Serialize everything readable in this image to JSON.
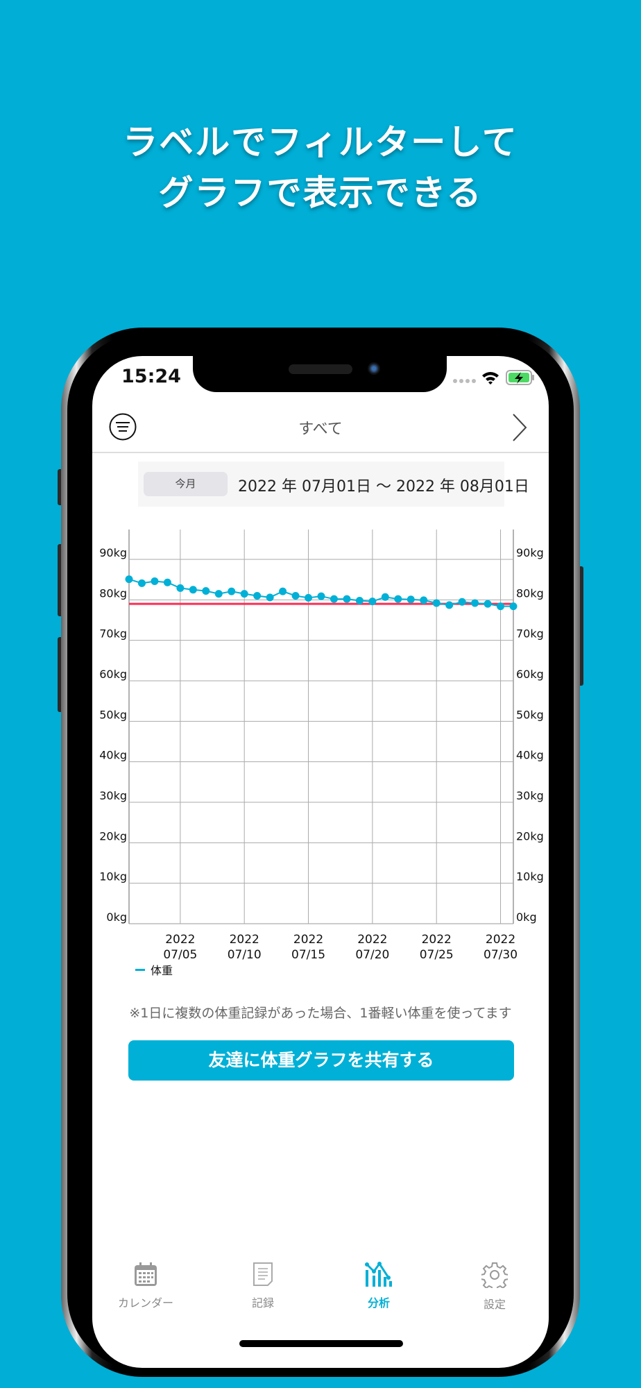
{
  "promo": {
    "line1": "ラベルでフィルターして",
    "line2": "グラフで表示できる"
  },
  "status": {
    "time": "15:24"
  },
  "header": {
    "title": "すべて",
    "menu_icon": "menu-circle-icon",
    "next_icon": "chevron-right-icon"
  },
  "period": {
    "preset": "今月",
    "range": "2022 年 07月01日 〜 2022 年 08月01日"
  },
  "chart_data": {
    "type": "line",
    "x": [
      "07/01",
      "07/02",
      "07/03",
      "07/04",
      "07/05",
      "07/06",
      "07/07",
      "07/08",
      "07/09",
      "07/10",
      "07/11",
      "07/12",
      "07/13",
      "07/14",
      "07/15",
      "07/16",
      "07/17",
      "07/18",
      "07/19",
      "07/20",
      "07/21",
      "07/22",
      "07/23",
      "07/24",
      "07/25",
      "07/26",
      "07/27",
      "07/28",
      "07/29",
      "07/30",
      "07/31"
    ],
    "series": [
      {
        "name": "体重",
        "color": "#00b0d6",
        "values": [
          85.1,
          84.1,
          84.6,
          84.3,
          82.9,
          82.5,
          82.2,
          81.5,
          82.1,
          81.5,
          81.0,
          80.6,
          82.1,
          81.0,
          80.5,
          80.9,
          80.2,
          80.2,
          79.8,
          79.6,
          80.7,
          80.2,
          80.1,
          79.9,
          79.2,
          78.7,
          79.5,
          79.2,
          79.0,
          78.4,
          78.4
        ]
      }
    ],
    "target_line": {
      "value": 79,
      "color": "#ff2d55"
    },
    "ylim": [
      0,
      90
    ],
    "yticks": [
      "0kg",
      "10kg",
      "20kg",
      "30kg",
      "40kg",
      "50kg",
      "60kg",
      "70kg",
      "80kg",
      "90kg"
    ],
    "xticks": [
      {
        "year": "2022",
        "date": "07/05"
      },
      {
        "year": "2022",
        "date": "07/10"
      },
      {
        "year": "2022",
        "date": "07/15"
      },
      {
        "year": "2022",
        "date": "07/20"
      },
      {
        "year": "2022",
        "date": "07/25"
      },
      {
        "year": "2022",
        "date": "07/30"
      }
    ],
    "grid": true,
    "legend": "bottom-left"
  },
  "note": "※1日に複数の体重記録があった場合、1番軽い体重を使ってます",
  "share_button": "友達に体重グラフを共有する",
  "tabs": [
    {
      "label": "カレンダー",
      "icon": "calendar-icon",
      "active": false
    },
    {
      "label": "記録",
      "icon": "document-icon",
      "active": false
    },
    {
      "label": "分析",
      "icon": "analytics-chart-icon",
      "active": true
    },
    {
      "label": "設定",
      "icon": "gear-icon",
      "active": false
    }
  ],
  "colors": {
    "accent": "#00b0d6",
    "background": "#00aed6"
  }
}
